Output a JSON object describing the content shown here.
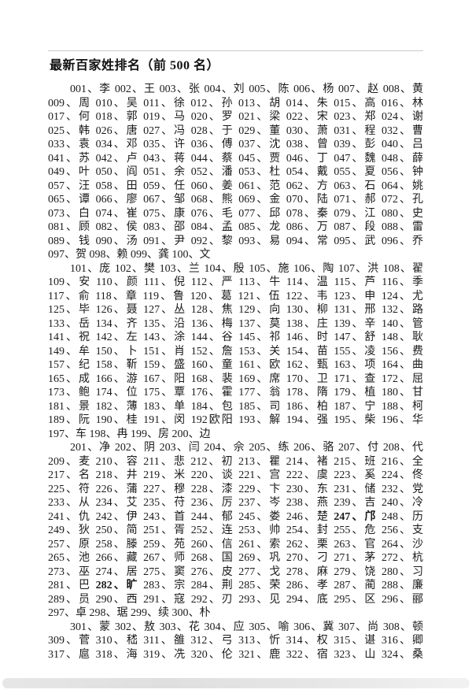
{
  "title": "最新百家姓排名（前 500 名）",
  "document": {
    "paragraphs": [
      {
        "lines": [
          {
            "text": "001、李 002、王 003、张 004、刘 005、陈 006、杨 007、赵 008、黄",
            "indent": true
          },
          {
            "text": "009、周 010、吴 011、徐 012、孙 013、胡 014、朱 015、高 016、林"
          },
          {
            "text": "017、何 018、郭 019、马 020、罗 021、梁 022、宋 023、郑 024、谢"
          },
          {
            "text": "025、韩 026、唐 027、冯 028、于 029、董 030、萧 031、程 032、曹"
          },
          {
            "text": "033、袁 034、邓 035、许 036、傅 037、沈 038、曾 039、彭 040、吕"
          },
          {
            "text": "041、苏 042、卢 043、蒋 044、蔡 045、贾 046、丁 047、魏 048、薛"
          },
          {
            "text": "049、叶 050、阎 051、余 052、潘 053、杜 054、戴 055、夏 056、钟"
          },
          {
            "text": "057、汪 058、田 059、任 060、姜 061、范 062、方 063、石 064、姚"
          },
          {
            "text": "065、谭 066、廖 067、邹 068、熊 069、金 070、陆 071、郝 072、孔"
          },
          {
            "text": "073、白 074、崔 075、康 076、毛 077、邱 078、秦 079、江 080、史"
          },
          {
            "text": "081、顾 082、侯 083、邵 084、孟 085、龙 086、万 087、段 088、雷"
          },
          {
            "text": "089、钱 090、汤 091、尹 092、黎 093、易 094、常 095、武 096、乔"
          },
          {
            "text": "097、贺 098、赖 099、龚 100、文",
            "flush": true
          }
        ]
      },
      {
        "lines": [
          {
            "text": "101、庞 102、樊 103、兰 104、殷 105、施 106、陶 107、洪 108、翟",
            "indent": true
          },
          {
            "text": "109、安 110、颜 111、倪 112、严 113、牛 114、温 115、芦 116、季"
          },
          {
            "text": "117、俞 118、章 119、鲁 120、葛 121、伍 122、韦 123、申 124、尤"
          },
          {
            "text": "125、毕 126、聂 127、丛 128、焦 129、向 130、柳 131、邢 132、路"
          },
          {
            "text": "133、岳 134、齐 135、沿 136、梅 137、莫 138、庄 139、辛 140、管"
          },
          {
            "text": "141、祝 142、左 143、涂 144、谷 145、祁 146、时 147、舒 148、耿"
          },
          {
            "text": "149、牟 150、卜 151、肖 152、詹 153、关 154、苗 155、凌 156、费"
          },
          {
            "text": "157、纪 158、靳 159、盛 160、童 161、欧 162、甄 163、项 164、曲"
          },
          {
            "text": "165、成 166、游 167、阳 168、裴 169、席 170、卫 171、查 172、屈"
          },
          {
            "text": "173、鲍 174、位 175、覃 176、霍 177、翁 178、隋 179、植 180、甘"
          },
          {
            "text": "181、景 182、薄 183、单 184、包 185、司 186、柏 187、宁 188、柯"
          },
          {
            "text": "189、阮 190、桂 191、闵 192欧阳 193、解 194、强 195、柴 196、华"
          },
          {
            "text": "197、车 198、冉 199、房 200、边",
            "flush": true
          }
        ]
      },
      {
        "lines": [
          {
            "text": "201、净 202、阴 203、闫 204、佘 205、练 206、骆 207、付 208、代",
            "indent": true
          },
          {
            "text": "209、麦 210、容 211、悲 212、初 213、瞿 214、褚 215、班 216、全"
          },
          {
            "text": "217、名 218、井 219、米 220、谈 221、宫 222、虞 223、奚 224、佟"
          },
          {
            "text": "225、符 226、蒲 227、穆 228、漆 229、卞 230、东 231、储 232、党"
          },
          {
            "text": "233、从 234、艾 235、苻 236、厉 237、岑 238、燕 239、吉 240、冷"
          },
          {
            "segments": [
              {
                "text": "241、仇 242、伊 243、首 244、郁 245、娄 246、楚 ",
                "bold": false
              },
              {
                "text": "247、邝",
                "bold": true
              },
              {
                "text": " 248、历",
                "bold": false
              }
            ]
          },
          {
            "text": "249、狄 250、简 251、胥 252、连 253、帅 254、封 255、危 256、支"
          },
          {
            "text": "257、原 258、滕 259、苑 260、信 261、索 262、栗 263、官 264、沙"
          },
          {
            "text": "265、池 266、藏 267、师 268、国 269、巩 270、刁 271、茅 272、杭"
          },
          {
            "text": "273、巫 274、居 275、窦 276、皮 277、戈 278、麻 279、饶 280、习"
          },
          {
            "segments": [
              {
                "text": "281、巴 ",
                "bold": false
              },
              {
                "text": "282、旷",
                "bold": true
              },
              {
                "text": " 283、宗 284、荆 285、荣 286、孝 287、蔺 288、廉",
                "bold": false
              }
            ]
          },
          {
            "text": "289、员 290、西 291、寇 292、刃 293、见 294、底 295、区 296、郦"
          },
          {
            "text": "297、卓 298、琚 299、续 300、朴",
            "flush": true
          }
        ]
      },
      {
        "lines": [
          {
            "text": "301、蒙 302、敖 303、花 304、应 305、喻 306、冀 307、尚 308、顿",
            "indent": true
          },
          {
            "text": "309、菅 310、嵇 311、雒 312、弓 313、忻 314、权 315、谌 316、卿"
          },
          {
            "text": "317、扈 318、海 319、冼 320、伦 321、鹿 322、宿 323、山 324、桑"
          }
        ]
      }
    ]
  }
}
